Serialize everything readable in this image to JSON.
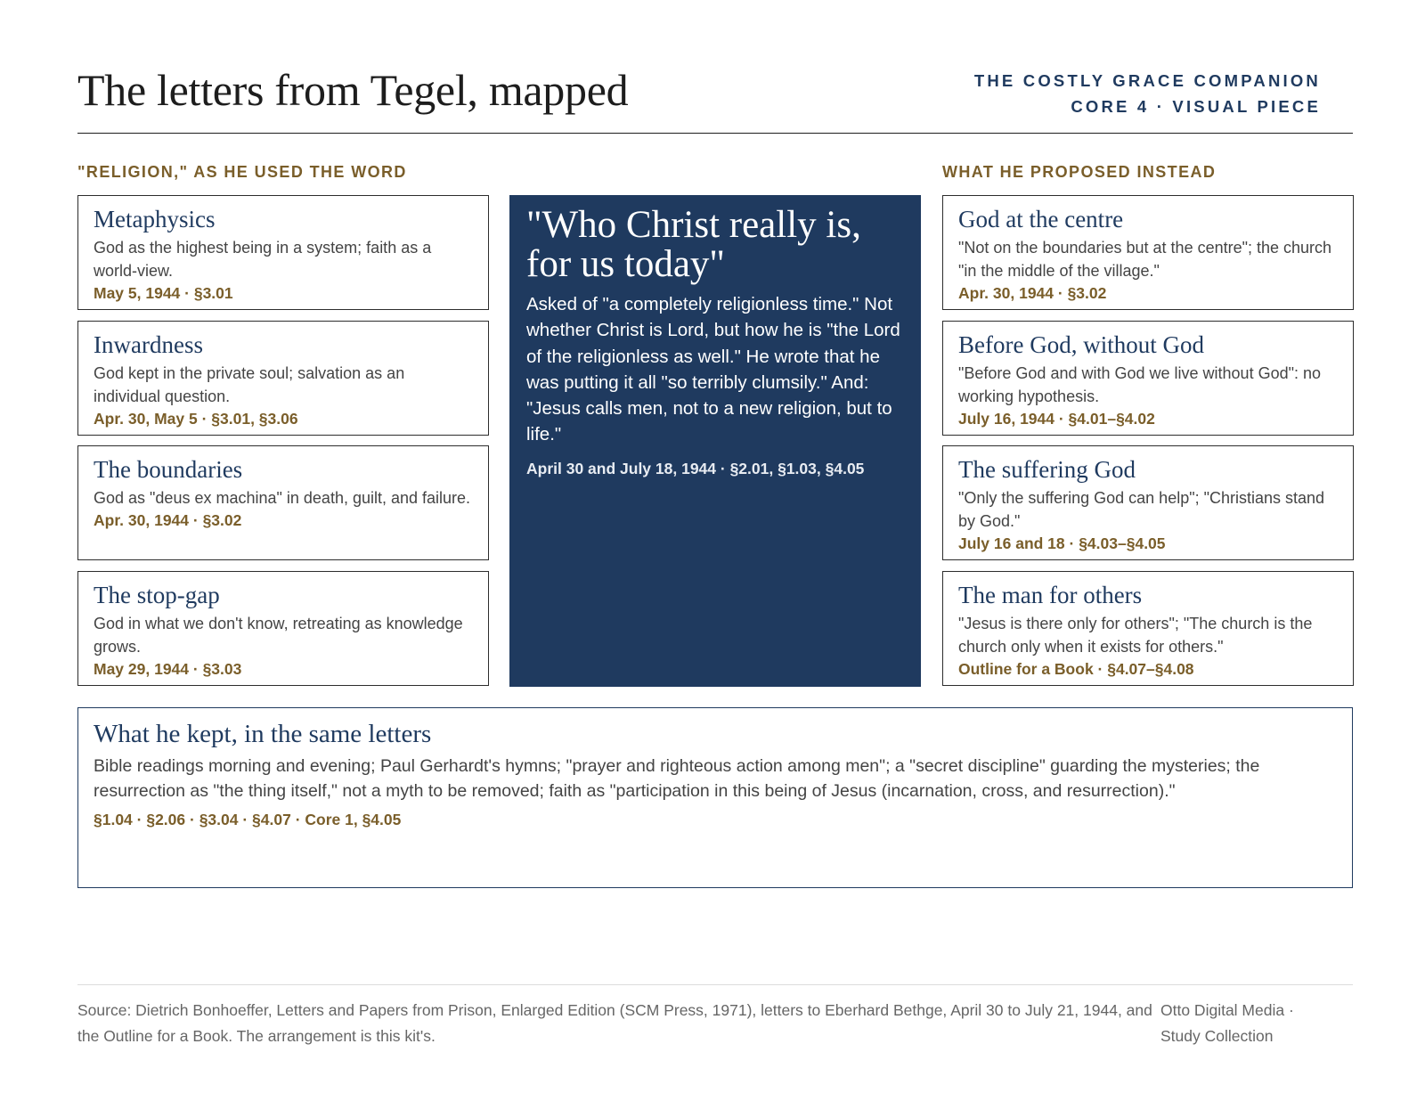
{
  "header": {
    "title": "The letters from Tegel, mapped",
    "brand_line1": "THE COSTLY GRACE COMPANION",
    "brand_line2": "CORE 4 · VISUAL PIECE"
  },
  "left_column": {
    "heading": "\"RELIGION,\" AS HE USED THE WORD",
    "cards": [
      {
        "title": "Metaphysics",
        "body": "God as the highest being in a system; faith as a world-view.",
        "ref": "May 5, 1944 · §3.01"
      },
      {
        "title": "Inwardness",
        "body": "God kept in the private soul; salvation as an individual question.",
        "ref": "Apr. 30, May 5 · §3.01, §3.06"
      },
      {
        "title": "The boundaries",
        "body": "God as \"deus ex machina\" in death, guilt, and failure.",
        "ref": "Apr. 30, 1944 · §3.02"
      },
      {
        "title": "The stop-gap",
        "body": "God in what we don't know, retreating as knowledge grows.",
        "ref": "May 29, 1944 · §3.03"
      }
    ]
  },
  "center": {
    "title": "\"Who Christ really is, for us today\"",
    "body": "Asked of \"a completely religionless time.\" Not whether Christ is Lord, but how he is \"the Lord of the religionless as well.\" He wrote that he was putting it all \"so terribly clumsily.\" And: \"Jesus calls men, not to a new religion, but to life.\"",
    "ref": "April 30 and July 18, 1944 · §2.01, §1.03, §4.05"
  },
  "right_column": {
    "heading": "WHAT HE PROPOSED INSTEAD",
    "cards": [
      {
        "title": "God at the centre",
        "body": "\"Not on the boundaries but at the centre\"; the church \"in the middle of the village.\"",
        "ref": "Apr. 30, 1944 · §3.02"
      },
      {
        "title": "Before God, without God",
        "body": "\"Before God and with God we live without God\": no working hypothesis.",
        "ref": "July 16, 1944 · §4.01–§4.02"
      },
      {
        "title": "The suffering God",
        "body": "\"Only the suffering God can help\"; \"Christians stand by God.\"",
        "ref": "July 16 and 18 · §4.03–§4.05"
      },
      {
        "title": "The man for others",
        "body": "\"Jesus is there only for others\"; \"The church is the church only when it exists for others.\"",
        "ref": "Outline for a Book · §4.07–§4.08"
      }
    ]
  },
  "kept": {
    "title": "What he kept, in the same letters",
    "body": "Bible readings morning and evening; Paul Gerhardt's hymns; \"prayer and righteous action among men\"; a \"secret discipline\" guarding the mysteries; the resurrection as \"the thing itself,\" not a myth to be removed; faith as \"participation in this being of Jesus (incarnation, cross, and resurrection).\"",
    "ref": "§1.04 · §2.06 · §3.04 · §4.07 · Core 1, §4.05"
  },
  "footer": {
    "source": "Source: Dietrich Bonhoeffer, Letters and Papers from Prison, Enlarged Edition (SCM Press, 1971), letters to Eberhard Bethge, April 30 to July 21, 1944, and the Outline for a Book. The arrangement is this kit's.",
    "credit_line1": "Otto Digital Media ·",
    "credit_line2": "Study Collection"
  },
  "colors": {
    "navy": "#1f3a5f",
    "gold": "#7a5e2a",
    "text": "#444444"
  }
}
